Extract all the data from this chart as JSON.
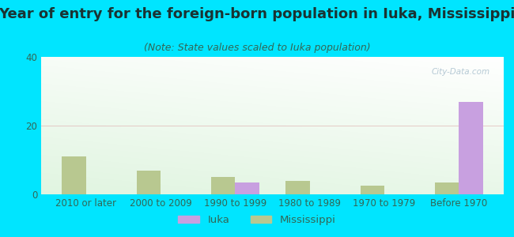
{
  "title": "Year of entry for the foreign-born population in Iuka, Mississippi",
  "subtitle": "(Note: State values scaled to Iuka population)",
  "categories": [
    "2010 or later",
    "2000 to 2009",
    "1990 to 1999",
    "1980 to 1989",
    "1970 to 1979",
    "Before 1970"
  ],
  "iuka_values": [
    0,
    0,
    3.5,
    0,
    0,
    27
  ],
  "ms_values": [
    11,
    7,
    5,
    4,
    2.5,
    3.5
  ],
  "iuka_color": "#c8a0e0",
  "ms_color": "#b8c890",
  "outer_bg": "#00e5ff",
  "chart_bg_tl": "#c8e8d0",
  "chart_bg_br": "#f8fff8",
  "ylim": [
    0,
    40
  ],
  "yticks": [
    0,
    20,
    40
  ],
  "bar_width": 0.32,
  "title_fontsize": 13,
  "subtitle_fontsize": 9,
  "tick_fontsize": 8.5,
  "legend_fontsize": 9.5,
  "watermark": "City-Data.com"
}
